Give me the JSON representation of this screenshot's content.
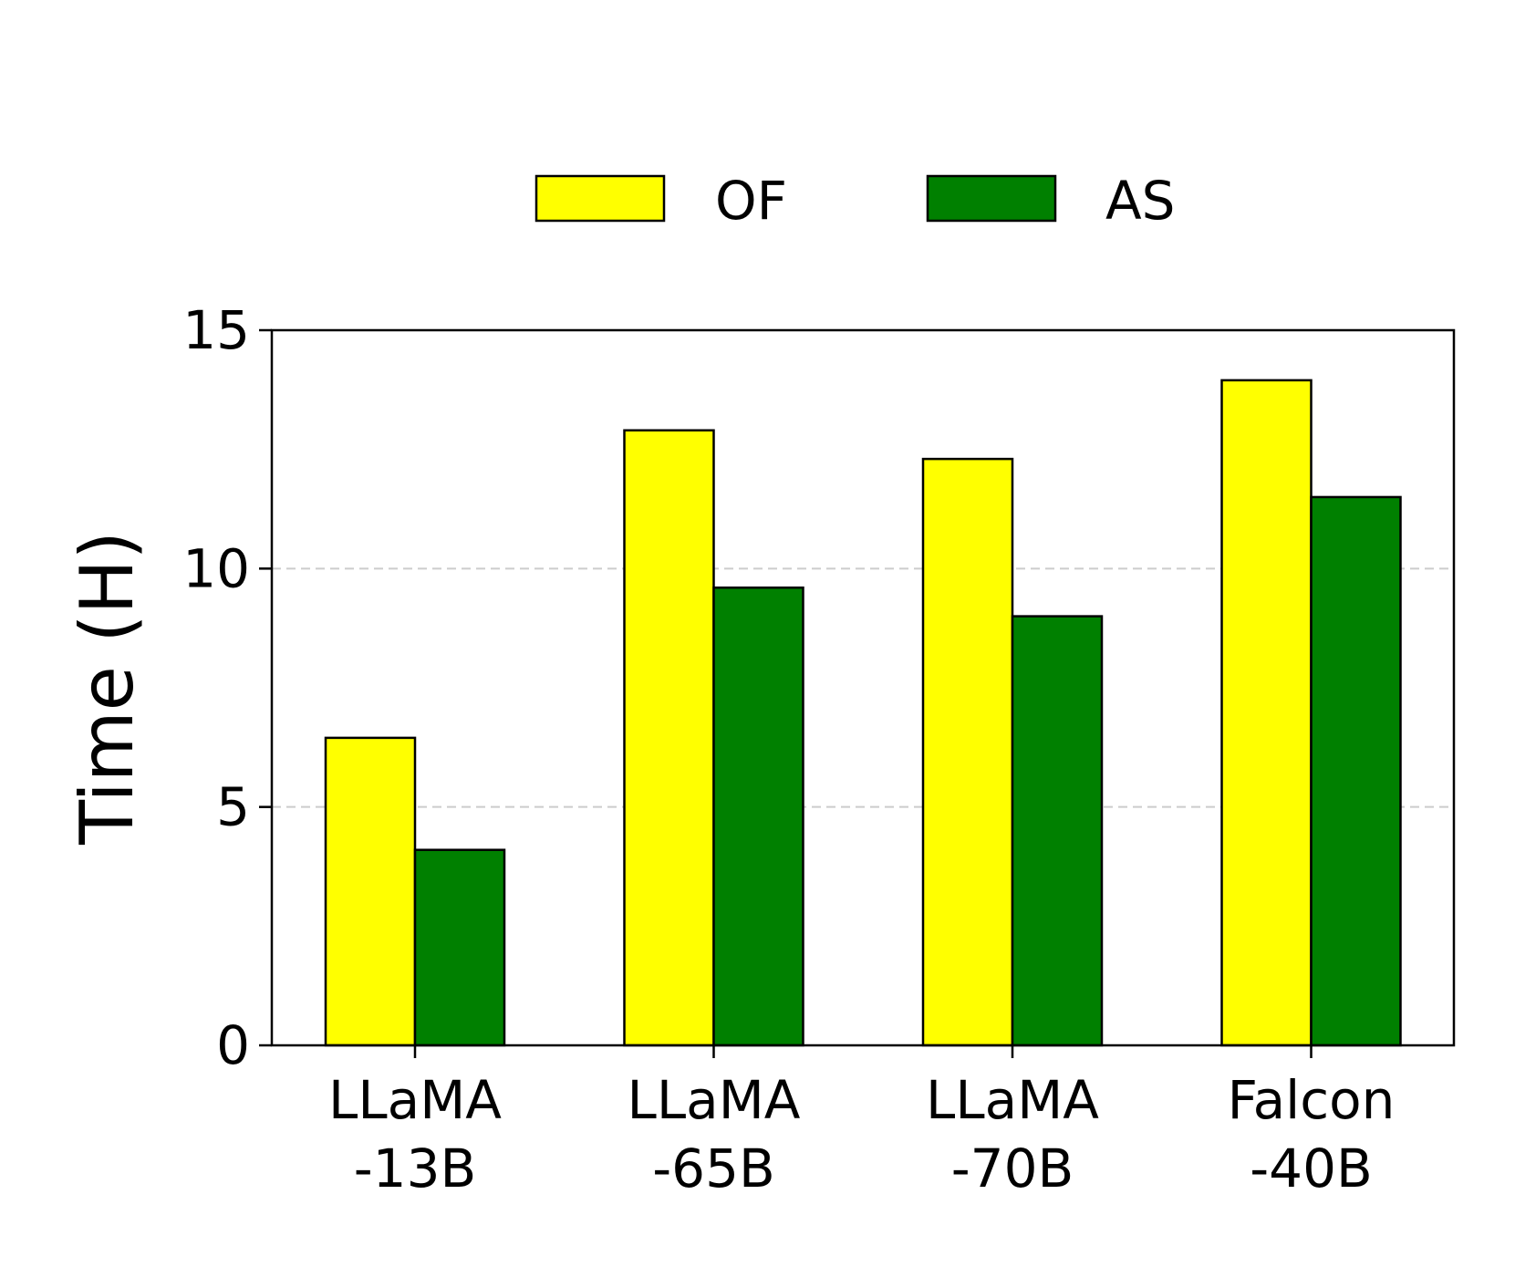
{
  "chart_data": {
    "type": "bar",
    "categories": [
      [
        "LLaMA",
        "-13B"
      ],
      [
        "LLaMA",
        "-65B"
      ],
      [
        "LLaMA",
        "-70B"
      ],
      [
        "Falcon",
        "-40B"
      ]
    ],
    "series": [
      {
        "name": "OF",
        "color": "#ffff00",
        "values": [
          6.45,
          12.9,
          12.3,
          13.95
        ]
      },
      {
        "name": "AS",
        "color": "#008000",
        "values": [
          4.1,
          9.6,
          9.0,
          11.5
        ]
      }
    ],
    "ylabel": "Time (H)",
    "xlabel": "",
    "ylim": [
      0,
      15
    ],
    "yticks": [
      0,
      5,
      10,
      15
    ],
    "grid": "horizontal dashed at 5 and 10",
    "legend": "top-center"
  }
}
